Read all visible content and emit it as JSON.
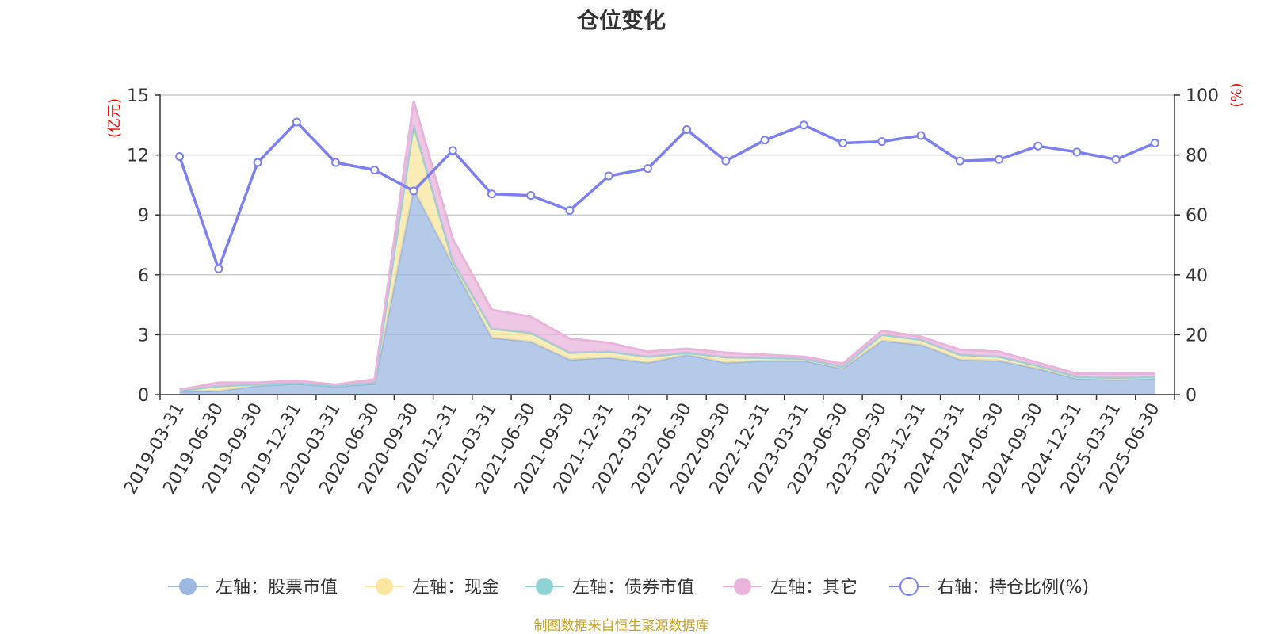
{
  "chart_data": {
    "type": "area",
    "title": "仓位变化",
    "x": [
      "2019-03-31",
      "2019-06-30",
      "2019-09-30",
      "2019-12-31",
      "2020-03-31",
      "2020-06-30",
      "2020-09-30",
      "2020-12-31",
      "2021-03-31",
      "2021-06-30",
      "2021-09-30",
      "2021-12-31",
      "2022-03-31",
      "2022-06-30",
      "2022-09-30",
      "2022-12-31",
      "2023-03-31",
      "2023-06-30",
      "2023-09-30",
      "2023-12-31",
      "2024-03-31",
      "2024-06-30",
      "2024-09-30",
      "2024-12-31",
      "2025-03-31",
      "2025-06-30"
    ],
    "left_axis": {
      "unit_label": "(亿元)",
      "ylim": [
        0,
        15
      ],
      "ticks": [
        "0",
        "3",
        "6",
        "9",
        "12",
        "15"
      ]
    },
    "right_axis": {
      "unit_label": "(%)",
      "ylim": [
        0,
        100
      ],
      "ticks": [
        "0",
        "20",
        "40",
        "60",
        "80",
        "100"
      ]
    },
    "series": [
      {
        "name": "左轴：股票市值",
        "axis": "left",
        "stacked": true,
        "color": "#9cb8e0",
        "values": [
          0.15,
          0.18,
          0.45,
          0.55,
          0.4,
          0.55,
          10.3,
          6.5,
          2.85,
          2.65,
          1.75,
          1.85,
          1.6,
          2.0,
          1.6,
          1.7,
          1.7,
          1.3,
          2.7,
          2.5,
          1.75,
          1.7,
          1.3,
          0.8,
          0.75,
          0.8
        ]
      },
      {
        "name": "左轴：现金",
        "axis": "left",
        "stacked": true,
        "color": "#fae69e",
        "values": [
          0.05,
          0.25,
          0.07,
          0.05,
          0.05,
          0.07,
          3.2,
          0.2,
          0.45,
          0.45,
          0.35,
          0.3,
          0.3,
          0.1,
          0.27,
          0.15,
          0.1,
          0.1,
          0.3,
          0.25,
          0.25,
          0.2,
          0.15,
          0.1,
          0.1,
          0.1
        ]
      },
      {
        "name": "左轴：债券市值",
        "axis": "left",
        "stacked": true,
        "color": "#8fd3d5",
        "values": [
          0,
          0,
          0,
          0,
          0,
          0,
          0,
          0,
          0,
          0,
          0,
          0,
          0,
          0,
          0,
          0,
          0,
          0,
          0,
          0,
          0,
          0,
          0,
          0,
          0,
          0
        ]
      },
      {
        "name": "左轴：其它",
        "axis": "left",
        "stacked": true,
        "color": "#e8b4dc",
        "values": [
          0.05,
          0.17,
          0.08,
          0.1,
          0.05,
          0.15,
          1.2,
          1.1,
          0.95,
          0.8,
          0.7,
          0.45,
          0.25,
          0.2,
          0.23,
          0.15,
          0.1,
          0.15,
          0.2,
          0.15,
          0.25,
          0.25,
          0.15,
          0.15,
          0.2,
          0.15
        ]
      },
      {
        "name": "右轴：持仓比例(%)",
        "axis": "right",
        "stacked": false,
        "color": "#7b7ff0",
        "values": [
          79.5,
          42,
          77.5,
          91,
          77.5,
          75,
          68,
          81.5,
          67,
          66.5,
          61.5,
          73,
          75.5,
          88.5,
          78,
          85,
          90,
          84,
          84.5,
          86.5,
          78,
          78.5,
          83,
          81,
          78.5,
          84
        ]
      }
    ],
    "legend_position": "bottom",
    "grid": true,
    "colors": {
      "axis_unit": "#ff0000",
      "grid": "#cccccc",
      "axis": "#333333"
    }
  },
  "source": {
    "text": "制图数据来自恒生聚源数据库",
    "color": "#c9a227"
  }
}
